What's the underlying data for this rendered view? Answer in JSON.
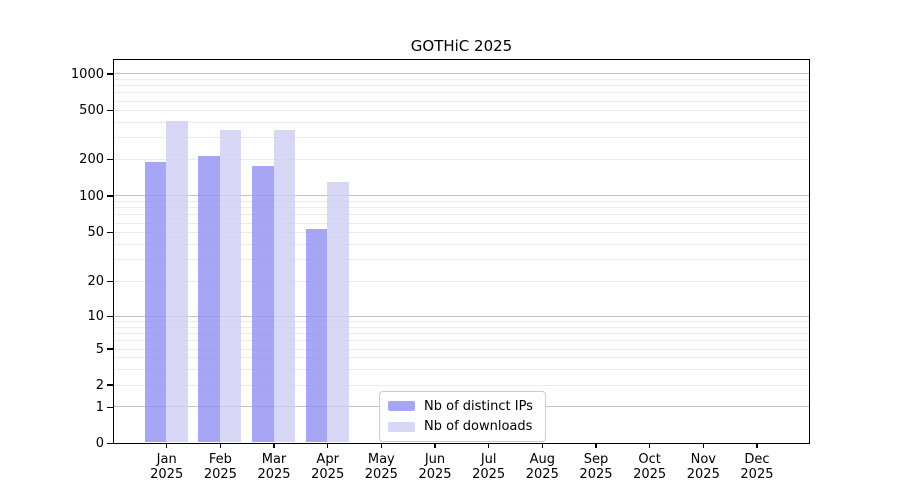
{
  "title": "GOTHiC 2025",
  "chart_data": {
    "type": "bar",
    "title": "GOTHiC 2025",
    "categories": [
      "Jan 2025",
      "Feb 2025",
      "Mar 2025",
      "Apr 2025",
      "May 2025",
      "Jun 2025",
      "Jul 2025",
      "Aug 2025",
      "Sep 2025",
      "Oct 2025",
      "Nov 2025",
      "Dec 2025"
    ],
    "series": [
      {
        "name": "Nb of distinct IPs",
        "key": "distinct-ips",
        "values": [
          190,
          210,
          175,
          53,
          0,
          0,
          0,
          0,
          0,
          0,
          0,
          0
        ]
      },
      {
        "name": "Nb of downloads",
        "key": "downloads",
        "values": [
          410,
          345,
          345,
          130,
          0,
          0,
          0,
          0,
          0,
          0,
          0,
          0
        ]
      }
    ],
    "yscale": "log-with-zero-baseline",
    "yticks": [
      0,
      1,
      2,
      5,
      10,
      20,
      50,
      100,
      200,
      500,
      1000
    ],
    "ylim": [
      0,
      1100
    ],
    "xlabel": "",
    "ylabel": "",
    "grid": "horizontal major and minor gridlines",
    "legend_position": "lower center"
  },
  "legend": {
    "items": [
      {
        "label": "Nb of distinct IPs",
        "color": "rgba(144,144,241,0.8)"
      },
      {
        "label": "Nb of downloads",
        "color": "rgba(206,206,244,0.8)"
      }
    ]
  },
  "colors": {
    "bar_distinct_ips": "rgba(144,144,241,0.8)",
    "bar_downloads": "rgba(206,206,244,0.8)",
    "grid_major": "#c2c2c2",
    "grid_minor": "#ebebeb",
    "spine": "#000000",
    "background": "#ffffff"
  }
}
